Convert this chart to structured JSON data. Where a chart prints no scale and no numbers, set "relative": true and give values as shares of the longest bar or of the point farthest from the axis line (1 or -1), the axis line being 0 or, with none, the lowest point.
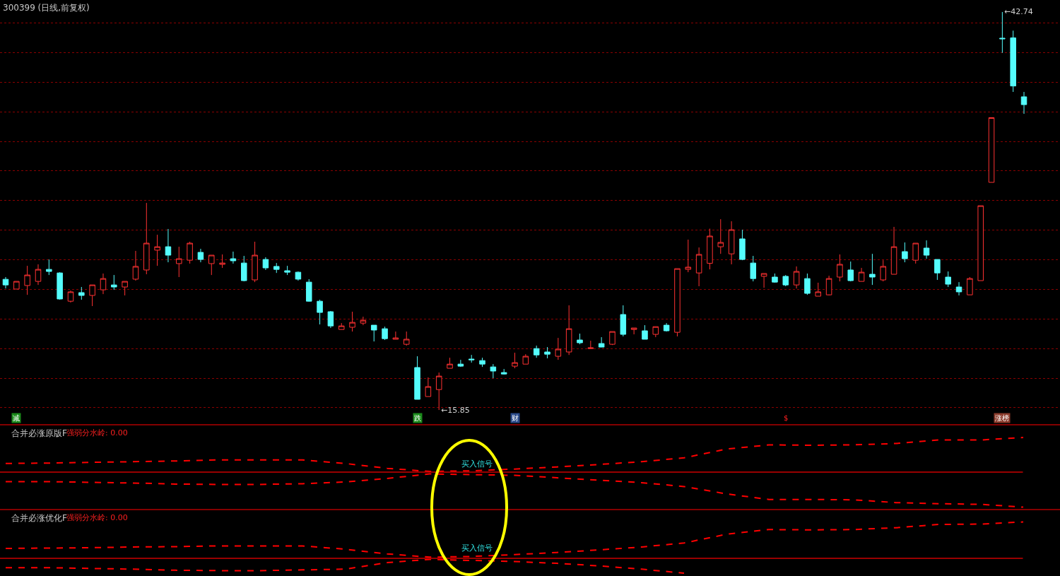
{
  "chart_data": [
    {
      "type": "candlestick",
      "title": "300399 (日线,前复权)",
      "categories": [
        null,
        null,
        null,
        null,
        null,
        null,
        null,
        null,
        null,
        null,
        null,
        null,
        null,
        null,
        null,
        null,
        null,
        null,
        null,
        null,
        null,
        null,
        null,
        null,
        null,
        null,
        null,
        null,
        null,
        null,
        null,
        null,
        null,
        null,
        null,
        null,
        null,
        null,
        null,
        null,
        null,
        null,
        null,
        null,
        null,
        null,
        null,
        null,
        null,
        null,
        null,
        null,
        null,
        null,
        null,
        null,
        null,
        null,
        null,
        null,
        null,
        null,
        null,
        null,
        null,
        null,
        null,
        null,
        null,
        null,
        null,
        null,
        null,
        null,
        null,
        null,
        null,
        null,
        null,
        null,
        null,
        null,
        null,
        null,
        null,
        null,
        null,
        null,
        null,
        null,
        null,
        null,
        null,
        null,
        null
      ],
      "ohlc": [
        [
          24.68,
          24.83,
          24.06,
          24.3
        ],
        [
          24.02,
          24.54,
          24.02,
          24.54
        ],
        [
          24.26,
          25.59,
          23.63,
          24.97
        ],
        [
          24.54,
          25.69,
          24.3,
          25.35
        ],
        [
          25.35,
          26.02,
          24.97,
          25.21
        ],
        [
          25.11,
          25.16,
          23.3,
          23.35
        ],
        [
          23.2,
          23.92,
          23.11,
          23.83
        ],
        [
          23.78,
          24.16,
          23.3,
          23.59
        ],
        [
          23.59,
          24.3,
          22.87,
          24.3
        ],
        [
          23.97,
          25.07,
          23.68,
          24.73
        ],
        [
          24.3,
          24.97,
          23.97,
          24.16
        ],
        [
          24.16,
          24.54,
          23.59,
          24.54
        ],
        [
          24.69,
          26.6,
          24.59,
          25.55
        ],
        [
          25.31,
          29.84,
          25.02,
          27.12
        ],
        [
          26.65,
          27.69,
          25.59,
          26.88
        ],
        [
          26.88,
          28.08,
          25.83,
          26.31
        ],
        [
          25.74,
          26.88,
          24.83,
          26.07
        ],
        [
          25.97,
          27.22,
          25.74,
          27.12
        ],
        [
          26.5,
          26.74,
          25.83,
          26.02
        ],
        [
          25.74,
          26.31,
          24.97,
          26.31
        ],
        [
          25.69,
          26.36,
          25.45,
          25.78
        ],
        [
          26.07,
          26.55,
          25.74,
          25.93
        ],
        [
          25.78,
          26.26,
          24.54,
          24.59
        ],
        [
          24.64,
          27.22,
          24.49,
          26.31
        ],
        [
          26.02,
          26.17,
          25.31,
          25.45
        ],
        [
          25.55,
          25.78,
          25.11,
          25.35
        ],
        [
          25.26,
          25.59,
          24.97,
          25.16
        ],
        [
          25.16,
          25.21,
          24.59,
          24.69
        ],
        [
          24.49,
          24.69,
          23.16,
          23.2
        ],
        [
          23.2,
          23.3,
          21.63,
          22.44
        ],
        [
          22.49,
          22.54,
          21.39,
          21.53
        ],
        [
          21.29,
          21.72,
          21.29,
          21.53
        ],
        [
          21.44,
          22.49,
          21.15,
          21.77
        ],
        [
          21.72,
          22.15,
          21.58,
          21.91
        ],
        [
          21.58,
          21.58,
          20.48,
          21.25
        ],
        [
          21.34,
          21.48,
          20.58,
          20.67
        ],
        [
          20.63,
          21.15,
          20.63,
          20.72
        ],
        [
          20.29,
          21.15,
          20.2,
          20.63
        ],
        [
          18.72,
          19.48,
          16.57,
          16.57
        ],
        [
          16.76,
          18.05,
          16.76,
          17.43
        ],
        [
          17.23,
          18.38,
          15.85,
          18.14
        ],
        [
          18.67,
          19.38,
          18.67,
          18.95
        ],
        [
          18.95,
          19.24,
          18.76,
          18.81
        ],
        [
          19.29,
          19.57,
          19.05,
          19.24
        ],
        [
          19.19,
          19.38,
          18.76,
          18.95
        ],
        [
          18.76,
          18.95,
          18.0,
          18.48
        ],
        [
          18.38,
          18.62,
          18.24,
          18.28
        ],
        [
          18.81,
          19.72,
          18.67,
          19.05
        ],
        [
          18.95,
          19.62,
          18.95,
          19.48
        ],
        [
          20.0,
          20.2,
          19.38,
          19.57
        ],
        [
          19.77,
          20.1,
          19.34,
          19.62
        ],
        [
          19.48,
          20.72,
          19.24,
          19.96
        ],
        [
          19.77,
          22.92,
          19.57,
          21.34
        ],
        [
          20.58,
          21.01,
          20.29,
          20.39
        ],
        [
          20.0,
          20.53,
          20.0,
          20.05
        ],
        [
          20.34,
          20.77,
          20.1,
          20.1
        ],
        [
          20.29,
          21.15,
          20.24,
          21.15
        ],
        [
          22.3,
          22.92,
          20.82,
          20.96
        ],
        [
          21.29,
          21.39,
          20.96,
          21.39
        ],
        [
          21.2,
          21.58,
          20.63,
          20.63
        ],
        [
          20.96,
          21.48,
          20.77,
          21.48
        ],
        [
          21.58,
          21.72,
          21.15,
          21.2
        ],
        [
          21.1,
          25.4,
          20.82,
          25.4
        ],
        [
          25.35,
          27.36,
          25.16,
          25.5
        ],
        [
          25.11,
          26.83,
          24.21,
          26.36
        ],
        [
          25.76,
          28.1,
          25.35,
          27.6
        ],
        [
          26.88,
          28.74,
          26.4,
          27.17
        ],
        [
          26.4,
          28.6,
          25.69,
          28.03
        ],
        [
          27.41,
          28.03,
          25.97,
          26.02
        ],
        [
          25.78,
          26.26,
          24.54,
          24.73
        ],
        [
          24.88,
          25.07,
          24.11,
          25.07
        ],
        [
          24.83,
          25.07,
          24.45,
          24.49
        ],
        [
          24.88,
          24.97,
          24.21,
          24.3
        ],
        [
          24.3,
          25.55,
          24.06,
          25.21
        ],
        [
          24.73,
          25.07,
          23.63,
          23.73
        ],
        [
          23.54,
          24.45,
          23.54,
          23.83
        ],
        [
          23.63,
          24.92,
          23.59,
          24.73
        ],
        [
          24.83,
          26.36,
          24.54,
          25.69
        ],
        [
          25.31,
          25.88,
          24.54,
          24.59
        ],
        [
          24.54,
          25.45,
          24.54,
          25.16
        ],
        [
          25.02,
          26.4,
          24.3,
          24.83
        ],
        [
          24.64,
          25.97,
          24.54,
          25.55
        ],
        [
          25.02,
          28.22,
          25.02,
          26.88
        ],
        [
          26.55,
          27.17,
          25.83,
          26.07
        ],
        [
          25.97,
          27.12,
          25.74,
          27.12
        ],
        [
          26.79,
          27.31,
          26.07,
          26.31
        ],
        [
          26.02,
          26.02,
          24.64,
          25.11
        ],
        [
          24.83,
          25.21,
          24.16,
          24.35
        ],
        [
          24.16,
          24.49,
          23.59,
          23.83
        ],
        [
          23.63,
          24.83,
          23.63,
          24.73
        ],
        [
          24.59,
          29.65,
          24.59,
          29.65
        ],
        [
          31.23,
          35.6,
          31.23,
          35.6
        ],
        [
          40.97,
          42.74,
          39.98,
          40.93
        ],
        [
          40.99,
          41.48,
          37.34,
          37.74
        ],
        [
          37.01,
          37.34,
          35.86,
          36.48
        ]
      ],
      "ylim": [
        14.9,
        43.55
      ],
      "yticks": [
        {
          "value": 16,
          "label": null
        },
        {
          "value": 18,
          "label": null
        },
        {
          "value": 20,
          "label": null
        },
        {
          "value": 22,
          "label": null
        },
        {
          "value": 24,
          "label": null
        },
        {
          "value": 26,
          "label": null
        },
        {
          "value": 28,
          "label": null
        },
        {
          "value": 30,
          "label": null
        },
        {
          "value": 32,
          "label": null
        },
        {
          "value": 34,
          "label": null
        },
        {
          "value": 36,
          "label": null
        },
        {
          "value": 38,
          "label": null
        },
        {
          "value": 40,
          "label": null
        },
        {
          "value": 42,
          "label": null
        }
      ],
      "grid": "y",
      "annotations": [
        "减",
        "跌",
        "财",
        "$",
        "涨榜",
        "←42.74",
        "←15.85"
      ]
    },
    {
      "type": "line",
      "title": "合并必涨原版F",
      "subtitle": "强弱分水岭: 0.00",
      "relative": true,
      "line_style": "dashed",
      "categories": [
        null,
        null,
        null,
        null,
        null,
        null,
        null,
        null,
        null,
        null,
        null,
        null,
        null,
        null,
        null,
        null,
        null,
        null,
        null,
        null,
        null,
        null,
        null,
        null,
        null
      ],
      "series": [
        {
          "color": "#ff0000",
          "values": [
            0.25,
            0.26,
            0.28,
            0.3,
            0.32,
            0.35,
            0.35,
            0.35,
            0.25,
            0.11,
            0.02,
            0.04,
            0.09,
            0.15,
            0.22,
            0.3,
            0.41,
            0.66,
            0.78,
            0.77,
            0.78,
            0.82,
            0.92,
            0.92,
            0.99
          ]
        },
        {
          "color": "#ff0000",
          "values": [
            -0.27,
            -0.27,
            -0.29,
            -0.31,
            -0.34,
            -0.35,
            -0.35,
            -0.33,
            -0.28,
            -0.18,
            -0.05,
            -0.07,
            -0.09,
            -0.16,
            -0.23,
            -0.3,
            -0.41,
            -0.62,
            -0.78,
            -0.78,
            -0.79,
            -0.87,
            -0.9,
            -0.92,
            -1.0
          ]
        }
      ],
      "ref_lines": [
        {
          "axis": "y",
          "value": 0,
          "color": "#cc0000"
        }
      ],
      "annotations": [
        "买入信号"
      ]
    },
    {
      "type": "line",
      "title": "合并必涨优化F",
      "subtitle": "强弱分水岭: 0.00",
      "relative": true,
      "line_style": "dashed",
      "categories": [
        null,
        null,
        null,
        null,
        null,
        null,
        null,
        null,
        null,
        null,
        null,
        null,
        null,
        null,
        null,
        null,
        null,
        null,
        null,
        null,
        null,
        null,
        null,
        null,
        null
      ],
      "series": [
        {
          "color": "#ff0000",
          "values": [
            0.27,
            0.28,
            0.29,
            0.31,
            0.32,
            0.34,
            0.34,
            0.34,
            0.25,
            0.12,
            0.03,
            0.05,
            0.1,
            0.16,
            0.23,
            0.31,
            0.42,
            0.66,
            0.79,
            0.78,
            0.79,
            0.84,
            0.93,
            0.94,
            1.0
          ]
        },
        {
          "color": "#ff0000",
          "values": [
            -0.26,
            -0.26,
            -0.28,
            -0.3,
            -0.33,
            -0.34,
            -0.34,
            -0.32,
            -0.3,
            -0.12,
            -0.03,
            -0.06,
            -0.09,
            -0.14,
            -0.21,
            -0.3,
            -0.41,
            null,
            null,
            null,
            null,
            null,
            null,
            null,
            null
          ]
        }
      ],
      "ref_lines": [
        {
          "axis": "y",
          "value": 0,
          "color": "#cc0000"
        }
      ],
      "annotations": [
        "买入信号"
      ]
    }
  ]
}
